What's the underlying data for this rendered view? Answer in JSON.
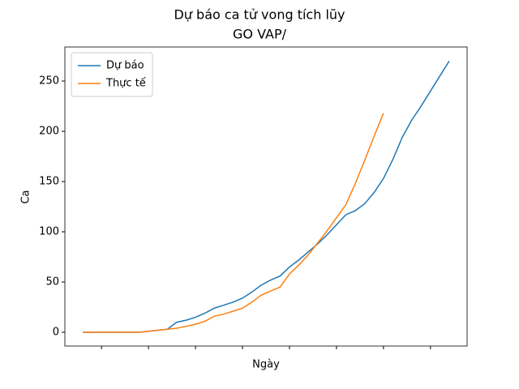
{
  "chart_data": {
    "type": "line",
    "title": "Dự báo ca tử vong tích lũy",
    "subtitle": "GO VAP/",
    "xlabel": "Ngày",
    "ylabel": "Ca",
    "xlim": [
      -1.9,
      40.9
    ],
    "xticks": [
      2,
      7,
      12,
      17,
      22,
      27,
      32,
      37
    ],
    "ylim": [
      -13.7,
      283.9
    ],
    "yticks": [
      0,
      50,
      100,
      150,
      200,
      250
    ],
    "legend": "upper left",
    "series": [
      {
        "name": "Dự báo",
        "color": "#1f77b4",
        "x": [
          0,
          1,
          2,
          3,
          4,
          5,
          6,
          7,
          8,
          9,
          10,
          11,
          12,
          13,
          14,
          15,
          16,
          17,
          18,
          19,
          20,
          21,
          22,
          23,
          24,
          25,
          26,
          27,
          28,
          29,
          30,
          31,
          32,
          33,
          34,
          35,
          36,
          37,
          38,
          39
        ],
        "values": [
          0,
          0,
          0,
          0,
          0,
          0,
          0,
          1,
          2,
          3,
          10,
          12,
          15,
          19,
          24,
          27,
          30,
          34,
          40,
          47,
          52,
          56,
          65,
          72,
          80,
          88,
          97,
          107,
          117,
          121,
          128,
          139,
          153,
          172,
          194,
          211,
          225,
          240,
          255,
          270
        ]
      },
      {
        "name": "Thực tế",
        "color": "#ff7f0e",
        "x": [
          0,
          1,
          2,
          3,
          4,
          5,
          6,
          7,
          8,
          9,
          10,
          11,
          12,
          13,
          14,
          15,
          16,
          17,
          18,
          19,
          20,
          21,
          22,
          23,
          24,
          25,
          26,
          27,
          28,
          29,
          30,
          31,
          32
        ],
        "values": [
          0,
          0,
          0,
          0,
          0,
          0,
          0,
          1,
          2,
          3,
          4,
          6,
          8,
          11,
          16,
          18,
          21,
          24,
          30,
          37,
          41,
          45,
          58,
          67,
          77,
          89,
          101,
          114,
          127,
          148,
          171,
          195,
          218
        ]
      }
    ]
  }
}
